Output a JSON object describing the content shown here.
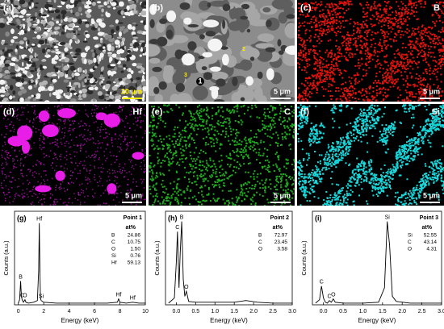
{
  "panels": [
    {
      "label": "(a)",
      "scale_bar": "20 μm",
      "scale_color": "#ffee00"
    },
    {
      "label": "(b)",
      "scale_bar": "5 μm",
      "points": [
        "1",
        "2",
        "3"
      ]
    },
    {
      "label": "(c)",
      "element": "B",
      "scale_bar": "5 μm",
      "color": "#e0140f"
    },
    {
      "label": "(d)",
      "element": "Hf",
      "scale_bar": "5 μm",
      "color": "#e81ee8"
    },
    {
      "label": "(e)",
      "element": "C",
      "scale_bar": "5 μm",
      "color": "#1faa1f"
    },
    {
      "label": "(f)",
      "element": "Si",
      "scale_bar": "5 μm",
      "color": "#18d8dc"
    }
  ],
  "chart_data": [
    {
      "type": "line",
      "panel_label": "(g)",
      "title": "Point 1",
      "xlabel": "Energy (keV)",
      "ylabel": "Counts (a.u.)",
      "x": [
        0,
        0.1,
        0.18,
        0.24,
        0.3,
        0.4,
        0.52,
        0.6,
        0.8,
        1.2,
        1.5,
        1.6,
        1.65,
        1.7,
        1.74,
        1.8,
        2.0,
        3,
        5,
        7,
        7.8,
        7.9,
        8.0,
        8.5,
        9.0,
        9.5,
        10
      ],
      "values": [
        2,
        6,
        28,
        10,
        6,
        3,
        6,
        3,
        2,
        3,
        5,
        40,
        96,
        40,
        8,
        5,
        3,
        2,
        2,
        2,
        3,
        7,
        3,
        2,
        3,
        2,
        2
      ],
      "color": "#000000",
      "xlim": [
        -0.3,
        10
      ],
      "xticks": [
        0,
        2,
        4,
        6,
        8,
        10
      ],
      "ylim": [
        0,
        110
      ],
      "annotations": [
        {
          "text": "B",
          "x": 0.18
        },
        {
          "text": "O",
          "x": 0.52
        },
        {
          "text": "C",
          "x": 0.3
        },
        {
          "text": "Hf",
          "x": 1.65
        },
        {
          "text": "Si",
          "x": 1.8
        },
        {
          "text": "Hf",
          "x": 7.9
        },
        {
          "text": "Hf",
          "x": 9.0
        }
      ],
      "table": {
        "header": "at%",
        "rows": [
          [
            "B",
            "24.86"
          ],
          [
            "C",
            "10.75"
          ],
          [
            "O",
            "1.50"
          ],
          [
            "Si",
            "0.76"
          ],
          [
            "Hf",
            "59.13"
          ]
        ]
      }
    },
    {
      "type": "line",
      "panel_label": "(h)",
      "title": "Point 2",
      "xlabel": "Energy (keV)",
      "ylabel": "Counts (a.u.)",
      "x": [
        -0.2,
        -0.05,
        0.0,
        0.03,
        0.07,
        0.1,
        0.14,
        0.18,
        0.22,
        0.26,
        0.32,
        0.5,
        1.0,
        1.5,
        1.8,
        2.1,
        2.5,
        3.0
      ],
      "values": [
        2,
        8,
        50,
        86,
        20,
        60,
        98,
        30,
        10,
        16,
        4,
        3,
        3,
        3,
        5,
        3,
        2,
        2
      ],
      "color": "#000000",
      "xlim": [
        -0.28,
        3.0
      ],
      "xticks": [
        {
          "value": 0,
          "label": "0.0"
        },
        {
          "value": 0.5,
          "label": "0.5"
        },
        {
          "value": 1,
          "label": "1.0"
        },
        {
          "value": 1.5,
          "label": "1.5"
        },
        {
          "value": 2,
          "label": "2.0"
        },
        {
          "value": 2.5,
          "label": "2.5"
        },
        {
          "value": 3,
          "label": "3.0"
        }
      ],
      "ylim": [
        0,
        110
      ],
      "annotations": [
        {
          "text": "C",
          "x": 0.03
        },
        {
          "text": "B",
          "x": 0.14
        },
        {
          "text": "O",
          "x": 0.26
        }
      ],
      "table": {
        "header": "at%",
        "rows": [
          [
            "B",
            "72.97"
          ],
          [
            "C",
            "23.45"
          ],
          [
            "O",
            "3.58"
          ]
        ]
      }
    },
    {
      "type": "line",
      "panel_label": "(i)",
      "title": "Point 3",
      "xlabel": "Energy (keV)",
      "ylabel": "Counts (a.u.)",
      "x": [
        -0.2,
        -0.1,
        -0.05,
        0.0,
        0.05,
        0.1,
        0.15,
        0.2,
        0.25,
        0.3,
        0.5,
        1.0,
        1.4,
        1.55,
        1.62,
        1.68,
        1.75,
        1.85,
        2.2,
        3.0
      ],
      "values": [
        2,
        6,
        22,
        8,
        3,
        2,
        5,
        3,
        7,
        3,
        2,
        2,
        3,
        20,
        98,
        70,
        10,
        4,
        2,
        2
      ],
      "color": "#000000",
      "xlim": [
        -0.28,
        3.0
      ],
      "xticks": [
        {
          "value": 0,
          "label": "0.0"
        },
        {
          "value": 0.5,
          "label": "0.5"
        },
        {
          "value": 1,
          "label": "1.0"
        },
        {
          "value": 1.5,
          "label": "1.5"
        },
        {
          "value": 2,
          "label": "2.0"
        },
        {
          "value": 2.5,
          "label": "2.5"
        },
        {
          "value": 3,
          "label": "3.0"
        }
      ],
      "ylim": [
        0,
        110
      ],
      "annotations": [
        {
          "text": "C",
          "x": -0.05
        },
        {
          "text": "C",
          "x": 0.15
        },
        {
          "text": "O",
          "x": 0.25
        },
        {
          "text": "Si",
          "x": 1.62
        }
      ],
      "table": {
        "header": "at%",
        "rows": [
          [
            "Si",
            "52.55"
          ],
          [
            "C",
            "43.14"
          ],
          [
            "O",
            "4.31"
          ]
        ]
      }
    }
  ]
}
